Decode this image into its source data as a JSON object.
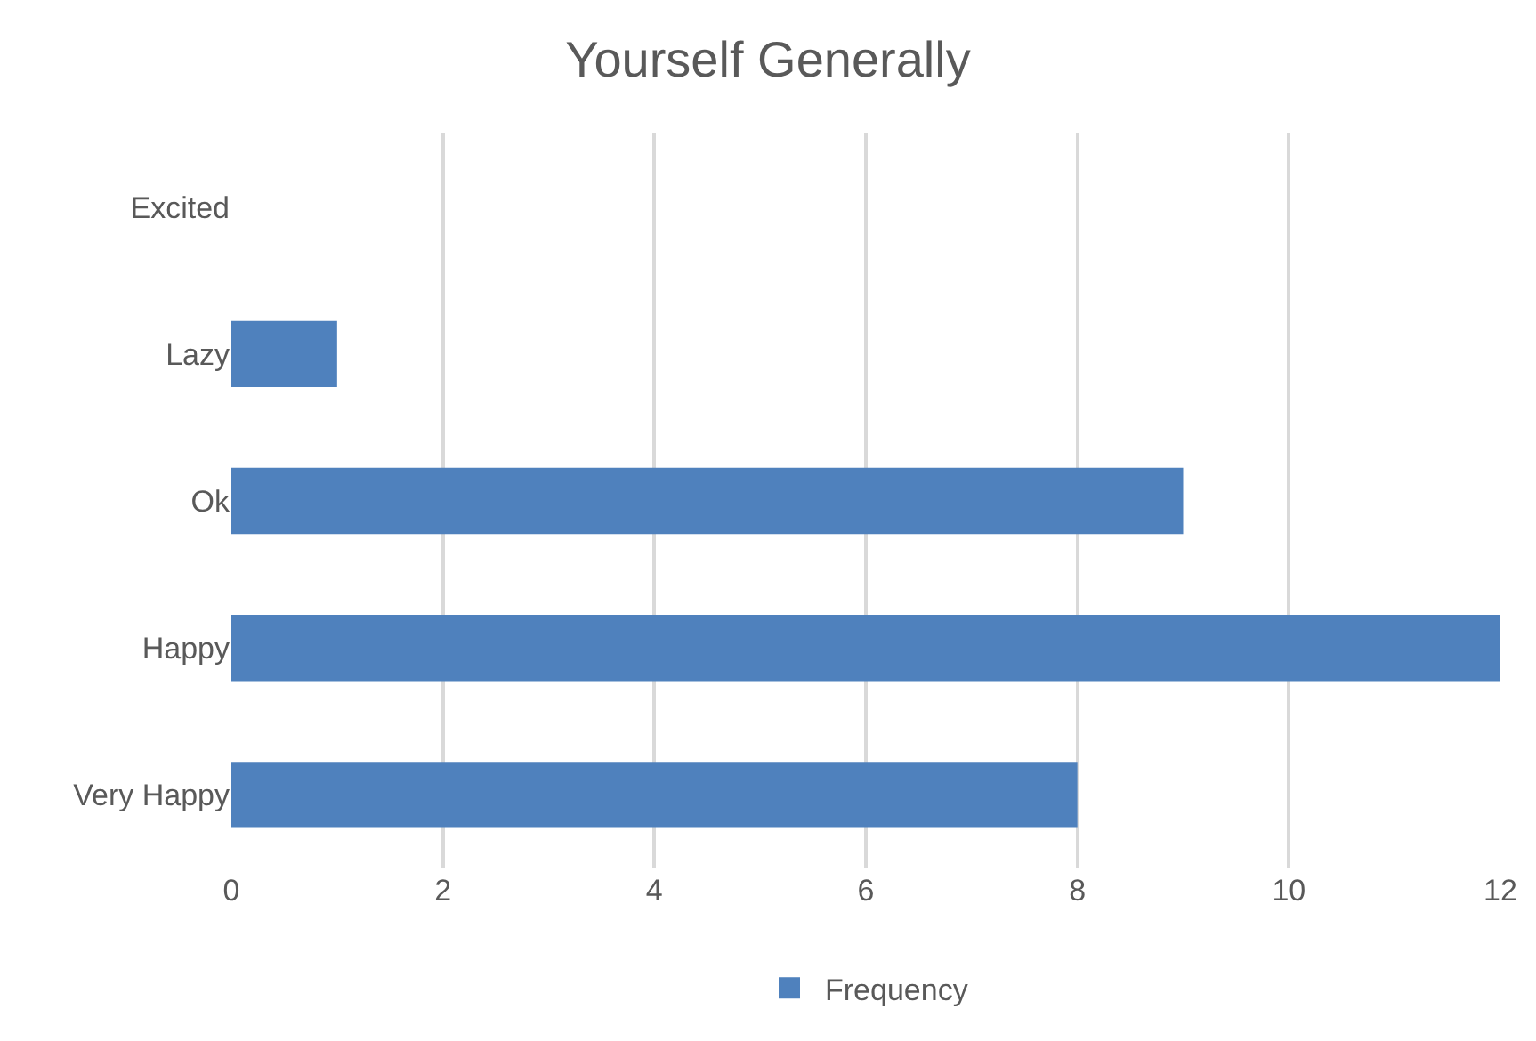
{
  "chart_data": {
    "type": "bar",
    "orientation": "horizontal",
    "title": "Yourself Generally",
    "categories": [
      "Excited",
      "Lazy",
      "Ok",
      "Happy",
      "Very Happy"
    ],
    "series": [
      {
        "name": "Frequency",
        "color": "#4f81bd",
        "values": [
          0,
          1,
          9,
          12,
          8
        ]
      }
    ],
    "xlim": [
      0,
      12
    ],
    "xticks": [
      0,
      2,
      4,
      6,
      8,
      10,
      12
    ],
    "grid": "x",
    "legend": "bottom"
  }
}
